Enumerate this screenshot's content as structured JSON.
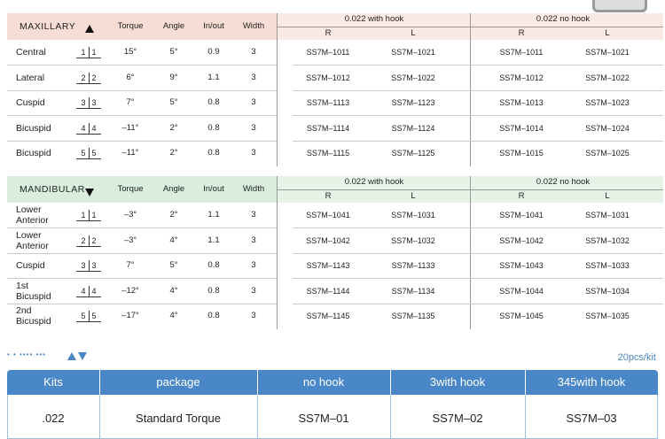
{
  "maxillary": {
    "title": "MAXILLARY",
    "headers": [
      "Torque",
      "Angle",
      "In/out",
      "Width"
    ],
    "groups": [
      "0.022 with hook",
      "0.022 no hook"
    ],
    "sides": [
      "R",
      "L",
      "R",
      "L"
    ],
    "rows": [
      {
        "tooth": "Central",
        "num": [
          "1",
          "1"
        ],
        "torque": "15°",
        "angle": "5°",
        "inout": "0.9",
        "width": "3",
        "codes": [
          "SS7M–1011",
          "SS7M–1021",
          "SS7M–1011",
          "SS7M–1021"
        ]
      },
      {
        "tooth": "Lateral",
        "num": [
          "2",
          "2"
        ],
        "torque": "6°",
        "angle": "9°",
        "inout": "1.1",
        "width": "3",
        "codes": [
          "SS7M–1012",
          "SS7M–1022",
          "SS7M–1012",
          "SS7M–1022"
        ]
      },
      {
        "tooth": "Cuspid",
        "num": [
          "3",
          "3"
        ],
        "torque": "7°",
        "angle": "5°",
        "inout": "0.8",
        "width": "3",
        "codes": [
          "SS7M–1113",
          "SS7M–1123",
          "SS7M–1013",
          "SS7M–1023"
        ]
      },
      {
        "tooth": "Bicuspid",
        "num": [
          "4",
          "4"
        ],
        "torque": "–11°",
        "angle": "2°",
        "inout": "0.8",
        "width": "3",
        "codes": [
          "SS7M–1114",
          "SS7M–1124",
          "SS7M–1014",
          "SS7M–1024"
        ]
      },
      {
        "tooth": "Bicuspid",
        "num": [
          "5",
          "5"
        ],
        "torque": "–11°",
        "angle": "2°",
        "inout": "0.8",
        "width": "3",
        "codes": [
          "SS7M–1115",
          "SS7M–1125",
          "SS7M–1015",
          "SS7M–1025"
        ]
      }
    ]
  },
  "mandibular": {
    "title": "MANDIBULAR",
    "headers": [
      "Torque",
      "Angle",
      "In/out",
      "Width"
    ],
    "groups": [
      "0.022 with hook",
      "0.022 no hook"
    ],
    "sides": [
      "R",
      "L",
      "R",
      "L"
    ],
    "rows": [
      {
        "tooth": "Lower Anterior",
        "num": [
          "1",
          "1"
        ],
        "torque": "–3°",
        "angle": "2°",
        "inout": "1.1",
        "width": "3",
        "codes": [
          "SS7M–1041",
          "SS7M–1031",
          "SS7M–1041",
          "SS7M–1031"
        ]
      },
      {
        "tooth": "Lower Anterior",
        "num": [
          "2",
          "2"
        ],
        "torque": "–3°",
        "angle": "4°",
        "inout": "1.1",
        "width": "3",
        "codes": [
          "SS7M–1042",
          "SS7M–1032",
          "SS7M–1042",
          "SS7M–1032"
        ]
      },
      {
        "tooth": "Cuspid",
        "num": [
          "3",
          "3"
        ],
        "torque": "7°",
        "angle": "5°",
        "inout": "0.8",
        "width": "3",
        "codes": [
          "SS7M–1143",
          "SS7M–1133",
          "SS7M–1043",
          "SS7M–1033"
        ]
      },
      {
        "tooth": "1st Bicuspid",
        "num": [
          "4",
          "4"
        ],
        "torque": "–12°",
        "angle": "4°",
        "inout": "0.8",
        "width": "3",
        "codes": [
          "SS7M–1144",
          "SS7M–1134",
          "SS7M–1044",
          "SS7M–1034"
        ]
      },
      {
        "tooth": "2nd Bicuspid",
        "num": [
          "5",
          "5"
        ],
        "torque": "–17°",
        "angle": "4°",
        "inout": "0.8",
        "width": "3",
        "codes": [
          "SS7M–1145",
          "SS7M–1135",
          "SS7M–1045",
          "SS7M–1035"
        ]
      }
    ]
  },
  "kits": {
    "note": "20pcs/kit",
    "headers": [
      "Kits",
      "package",
      "no hook",
      "3with hook",
      "345with hook"
    ],
    "rows": [
      [
        ".022",
        "Standard Torque",
        "SS7M–01",
        "SS7M–02",
        "SS7M–03"
      ]
    ]
  }
}
